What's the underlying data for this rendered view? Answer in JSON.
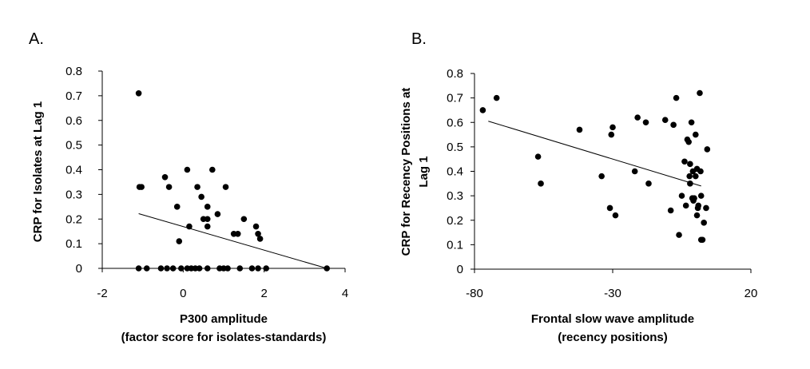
{
  "chart_data": [
    {
      "type": "scatter",
      "panel_label": "A.",
      "xlabel_lines": [
        "P300 amplitude",
        "(factor score for isolates-standards)"
      ],
      "ylabel_lines": [
        "CRP for Isolates at Lag 1"
      ],
      "xlim": [
        -2,
        4
      ],
      "ylim": [
        0,
        0.8
      ],
      "x_ticks": [
        -2,
        0,
        2,
        4
      ],
      "y_ticks": [
        0,
        0.1,
        0.2,
        0.3,
        0.4,
        0.5,
        0.6,
        0.7,
        0.8
      ],
      "x_tick_labels": [
        "-2",
        "0",
        "2",
        "4"
      ],
      "y_tick_labels": [
        "0",
        "0.1",
        "0.2",
        "0.3",
        "0.4",
        "0.5",
        "0.6",
        "0.7",
        "0.8"
      ],
      "trendline": {
        "x": [
          -1.1,
          3.55
        ],
        "y": [
          0.222,
          0.0
        ]
      },
      "points": [
        {
          "x": -1.1,
          "y": 0.71
        },
        {
          "x": -1.08,
          "y": 0.33
        },
        {
          "x": -1.03,
          "y": 0.33
        },
        {
          "x": -0.45,
          "y": 0.37
        },
        {
          "x": 0.1,
          "y": 0.4
        },
        {
          "x": 0.72,
          "y": 0.4
        },
        {
          "x": -0.35,
          "y": 0.33
        },
        {
          "x": 0.35,
          "y": 0.33
        },
        {
          "x": 1.05,
          "y": 0.33
        },
        {
          "x": 0.45,
          "y": 0.29
        },
        {
          "x": -0.15,
          "y": 0.25
        },
        {
          "x": 0.6,
          "y": 0.25
        },
        {
          "x": 0.85,
          "y": 0.22
        },
        {
          "x": 0.5,
          "y": 0.2
        },
        {
          "x": 0.6,
          "y": 0.2
        },
        {
          "x": 1.5,
          "y": 0.2
        },
        {
          "x": 0.15,
          "y": 0.17
        },
        {
          "x": 0.6,
          "y": 0.17
        },
        {
          "x": 1.8,
          "y": 0.17
        },
        {
          "x": 1.25,
          "y": 0.14
        },
        {
          "x": 1.35,
          "y": 0.14
        },
        {
          "x": 1.85,
          "y": 0.14
        },
        {
          "x": 1.9,
          "y": 0.12
        },
        {
          "x": -0.1,
          "y": 0.11
        },
        {
          "x": -1.1,
          "y": 0.0
        },
        {
          "x": -0.9,
          "y": 0.0
        },
        {
          "x": -0.55,
          "y": 0.0
        },
        {
          "x": -0.4,
          "y": 0.0
        },
        {
          "x": -0.25,
          "y": 0.0
        },
        {
          "x": -0.05,
          "y": 0.0
        },
        {
          "x": 0.1,
          "y": 0.0
        },
        {
          "x": 0.2,
          "y": 0.0
        },
        {
          "x": 0.3,
          "y": 0.0
        },
        {
          "x": 0.4,
          "y": 0.0
        },
        {
          "x": 0.6,
          "y": 0.0
        },
        {
          "x": 0.9,
          "y": 0.0
        },
        {
          "x": 1.0,
          "y": 0.0
        },
        {
          "x": 1.1,
          "y": 0.0
        },
        {
          "x": 1.4,
          "y": 0.0
        },
        {
          "x": 1.7,
          "y": 0.0
        },
        {
          "x": 1.85,
          "y": 0.0
        },
        {
          "x": 2.05,
          "y": 0.0
        },
        {
          "x": 3.55,
          "y": 0.0
        }
      ]
    },
    {
      "type": "scatter",
      "panel_label": "B.",
      "xlabel_lines": [
        "Frontal slow wave amplitude",
        "(recency positions)"
      ],
      "ylabel_lines": [
        "CRP for Recency Positions at",
        "Lag 1"
      ],
      "xlim": [
        -80,
        20
      ],
      "ylim": [
        0,
        0.8
      ],
      "x_ticks": [
        -80,
        -30,
        20
      ],
      "y_ticks": [
        0,
        0.1,
        0.2,
        0.3,
        0.4,
        0.5,
        0.6,
        0.7,
        0.8
      ],
      "x_tick_labels": [
        "-80",
        "-30",
        "20"
      ],
      "y_tick_labels": [
        "0",
        "0.1",
        "0.2",
        "0.3",
        "0.4",
        "0.5",
        "0.6",
        "0.7",
        "0.8"
      ],
      "trendline": {
        "x": [
          -75,
          2
        ],
        "y": [
          0.605,
          0.34
        ]
      },
      "points": [
        {
          "x": -77,
          "y": 0.65
        },
        {
          "x": -72,
          "y": 0.7
        },
        {
          "x": -57,
          "y": 0.46
        },
        {
          "x": -56,
          "y": 0.35
        },
        {
          "x": -42,
          "y": 0.57
        },
        {
          "x": -34,
          "y": 0.38
        },
        {
          "x": -31,
          "y": 0.25
        },
        {
          "x": -30.5,
          "y": 0.55
        },
        {
          "x": -30,
          "y": 0.58
        },
        {
          "x": -29,
          "y": 0.22
        },
        {
          "x": -22,
          "y": 0.4
        },
        {
          "x": -21,
          "y": 0.62
        },
        {
          "x": -18,
          "y": 0.6
        },
        {
          "x": -17,
          "y": 0.35
        },
        {
          "x": -11,
          "y": 0.61
        },
        {
          "x": -9,
          "y": 0.24
        },
        {
          "x": -8,
          "y": 0.59
        },
        {
          "x": -7,
          "y": 0.7
        },
        {
          "x": -6,
          "y": 0.14
        },
        {
          "x": -5,
          "y": 0.3
        },
        {
          "x": -4,
          "y": 0.44
        },
        {
          "x": -3.5,
          "y": 0.26
        },
        {
          "x": -3,
          "y": 0.53
        },
        {
          "x": -2.5,
          "y": 0.52
        },
        {
          "x": -2.2,
          "y": 0.38
        },
        {
          "x": -2,
          "y": 0.43
        },
        {
          "x": -2,
          "y": 0.35
        },
        {
          "x": -1.5,
          "y": 0.6
        },
        {
          "x": -1.2,
          "y": 0.29
        },
        {
          "x": -1,
          "y": 0.4
        },
        {
          "x": -0.8,
          "y": 0.28
        },
        {
          "x": -0.5,
          "y": 0.29
        },
        {
          "x": 0,
          "y": 0.55
        },
        {
          "x": 0,
          "y": 0.38
        },
        {
          "x": 0.5,
          "y": 0.41
        },
        {
          "x": 0.5,
          "y": 0.22
        },
        {
          "x": 0.8,
          "y": 0.25
        },
        {
          "x": 1,
          "y": 0.26
        },
        {
          "x": 1.5,
          "y": 0.72
        },
        {
          "x": 1.8,
          "y": 0.4
        },
        {
          "x": 2,
          "y": 0.3
        },
        {
          "x": 2,
          "y": 0.12
        },
        {
          "x": 2.5,
          "y": 0.12
        },
        {
          "x": 3,
          "y": 0.19
        },
        {
          "x": 3.8,
          "y": 0.25
        },
        {
          "x": 4.2,
          "y": 0.49
        }
      ]
    }
  ]
}
